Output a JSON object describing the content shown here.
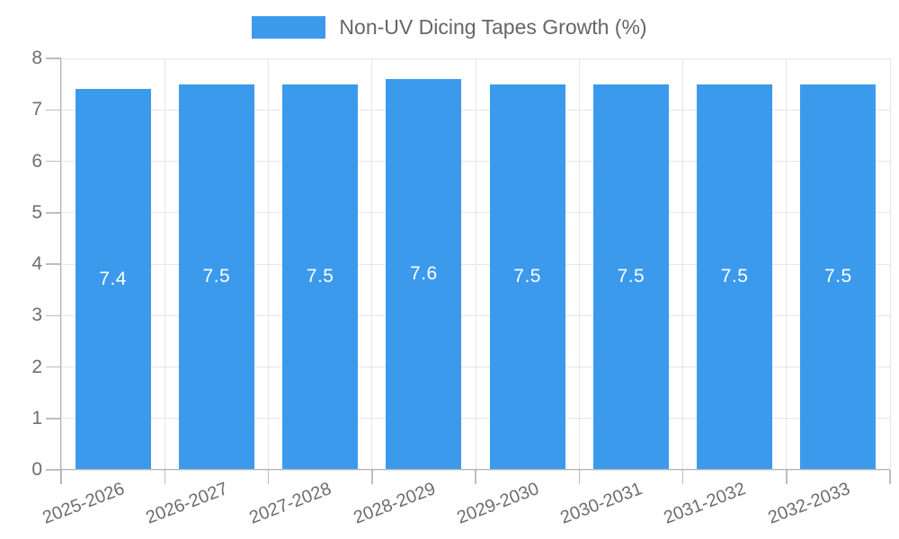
{
  "chart_data": {
    "type": "bar",
    "title": "Non-UV Dicing Tapes Growth (%)",
    "categories": [
      "2025-2026",
      "2026-2027",
      "2027-2028",
      "2028-2029",
      "2029-2030",
      "2030-2031",
      "2031-2032",
      "2032-2033"
    ],
    "values": [
      7.4,
      7.5,
      7.5,
      7.6,
      7.5,
      7.5,
      7.5,
      7.5
    ],
    "value_labels": [
      "7.4",
      "7.5",
      "7.5",
      "7.6",
      "7.5",
      "7.5",
      "7.5",
      "7.5"
    ],
    "xlabel": "",
    "ylabel": "",
    "ylim": [
      0,
      8
    ],
    "y_ticks": [
      0,
      1,
      2,
      3,
      4,
      5,
      6,
      7,
      8
    ],
    "grid": true,
    "legend_position": "top-center",
    "colors": {
      "bar": "#3C9AEC",
      "bar_value_label": "#ffffff",
      "gridline": "#e6e6e6",
      "axis_line": "#b2b2b2",
      "tick_mark": "#bdbdbd",
      "axis_text": "#6e6e6e",
      "legend_text": "#666666",
      "background": "#ffffff"
    }
  }
}
